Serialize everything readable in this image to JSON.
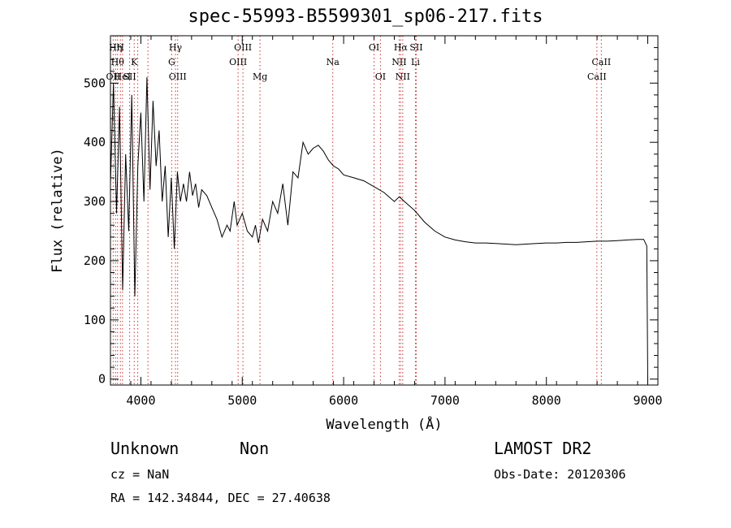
{
  "chart_data": {
    "type": "line",
    "title": "spec-55993-B5599301_sp06-217.fits",
    "xlabel": "Wavelength (Å)",
    "ylabel": "Flux (relative)",
    "xlim": [
      3700,
      9100
    ],
    "ylim": [
      -10,
      580
    ],
    "xticks": [
      4000,
      5000,
      6000,
      7000,
      8000,
      9000
    ],
    "yticks": [
      0,
      100,
      200,
      300,
      400,
      500
    ],
    "grid": false,
    "legend": "none",
    "line_color": "#000000",
    "marker_color": "#cc3333",
    "series": [
      {
        "x": [
          3700,
          3730,
          3760,
          3790,
          3820,
          3850,
          3880,
          3910,
          3940,
          3970,
          4000,
          4030,
          4060,
          4090,
          4120,
          4150,
          4180,
          4210,
          4240,
          4270,
          4300,
          4330,
          4360,
          4390,
          4420,
          4450,
          4480,
          4510,
          4540,
          4570,
          4600,
          4650,
          4700,
          4750,
          4800,
          4850,
          4880,
          4920,
          4950,
          5000,
          5050,
          5100,
          5130,
          5160,
          5200,
          5250,
          5300,
          5350,
          5400,
          5450,
          5500,
          5550,
          5600,
          5650,
          5700,
          5750,
          5800,
          5850,
          5900,
          5950,
          6000,
          6100,
          6200,
          6300,
          6400,
          6500,
          6550,
          6600,
          6700,
          6800,
          6900,
          7000,
          7100,
          7200,
          7300,
          7400,
          7500,
          7600,
          7700,
          7800,
          7900,
          8000,
          8100,
          8200,
          8300,
          8400,
          8500,
          8600,
          8700,
          8800,
          8900,
          8960,
          8990,
          9000
        ],
        "y": [
          330,
          500,
          280,
          460,
          150,
          380,
          250,
          480,
          140,
          360,
          450,
          300,
          510,
          320,
          470,
          360,
          420,
          300,
          360,
          240,
          340,
          220,
          350,
          300,
          330,
          300,
          350,
          310,
          330,
          290,
          320,
          310,
          290,
          270,
          240,
          260,
          250,
          300,
          260,
          280,
          250,
          240,
          260,
          230,
          270,
          250,
          300,
          280,
          330,
          260,
          350,
          340,
          400,
          380,
          390,
          395,
          385,
          370,
          360,
          355,
          345,
          340,
          335,
          325,
          315,
          300,
          308,
          300,
          285,
          265,
          250,
          240,
          235,
          232,
          230,
          230,
          229,
          228,
          227,
          228,
          229,
          230,
          230,
          231,
          231,
          232,
          233,
          233,
          234,
          235,
          236,
          236,
          225,
          0
        ]
      }
    ],
    "lines": [
      {
        "x": 3727,
        "labels": [
          "OII"
        ],
        "rows": [
          3
        ]
      },
      {
        "x": 3750,
        "labels": [
          "Hη"
        ],
        "rows": [
          1
        ]
      },
      {
        "x": 3770,
        "labels": [
          "Hθ"
        ],
        "rows": [
          2
        ]
      },
      {
        "x": 3798,
        "labels": [
          "H"
        ],
        "rows": [
          1
        ]
      },
      {
        "x": 3819,
        "labels": [
          "HeI"
        ],
        "rows": [
          3
        ]
      },
      {
        "x": 3889,
        "labels": [
          "SII"
        ],
        "rows": [
          3
        ]
      },
      {
        "x": 3934,
        "labels": [
          "K"
        ],
        "rows": [
          2
        ]
      },
      {
        "x": 3969,
        "labels": [],
        "rows": []
      },
      {
        "x": 4070,
        "labels": [],
        "rows": []
      },
      {
        "x": 4304,
        "labels": [
          "G"
        ],
        "rows": [
          2
        ]
      },
      {
        "x": 4341,
        "labels": [
          "Hγ"
        ],
        "rows": [
          1
        ]
      },
      {
        "x": 4363,
        "labels": [
          "OIII"
        ],
        "rows": [
          3
        ]
      },
      {
        "x": 4959,
        "labels": [
          "OIII"
        ],
        "rows": [
          2
        ]
      },
      {
        "x": 5007,
        "labels": [
          "OIII"
        ],
        "rows": [
          1
        ]
      },
      {
        "x": 5175,
        "labels": [
          "Mg"
        ],
        "rows": [
          3
        ]
      },
      {
        "x": 5893,
        "labels": [
          "Na"
        ],
        "rows": [
          2
        ]
      },
      {
        "x": 6300,
        "labels": [
          "OI"
        ],
        "rows": [
          1
        ]
      },
      {
        "x": 6363,
        "labels": [
          "OI"
        ],
        "rows": [
          3
        ]
      },
      {
        "x": 6548,
        "labels": [
          "NII"
        ],
        "rows": [
          2
        ]
      },
      {
        "x": 6563,
        "labels": [
          "Hα"
        ],
        "rows": [
          1
        ]
      },
      {
        "x": 6583,
        "labels": [
          "NII"
        ],
        "rows": [
          3
        ]
      },
      {
        "x": 6716,
        "labels": [
          "SII"
        ],
        "rows": [
          1
        ]
      },
      {
        "x": 6708,
        "labels": [
          "Li"
        ],
        "rows": [
          2
        ]
      },
      {
        "x": 8498,
        "labels": [
          "CaII"
        ],
        "rows": [
          3
        ]
      },
      {
        "x": 8542,
        "labels": [
          "CaII"
        ],
        "rows": [
          2
        ]
      }
    ]
  },
  "info": {
    "class_label": "Unknown",
    "subclass_label": "Non",
    "survey_label": "LAMOST DR2",
    "cz_label": "cz = NaN",
    "obs_date_label": "Obs-Date: 20120306",
    "coords_label": "RA = 142.34844, DEC =  27.40638"
  }
}
